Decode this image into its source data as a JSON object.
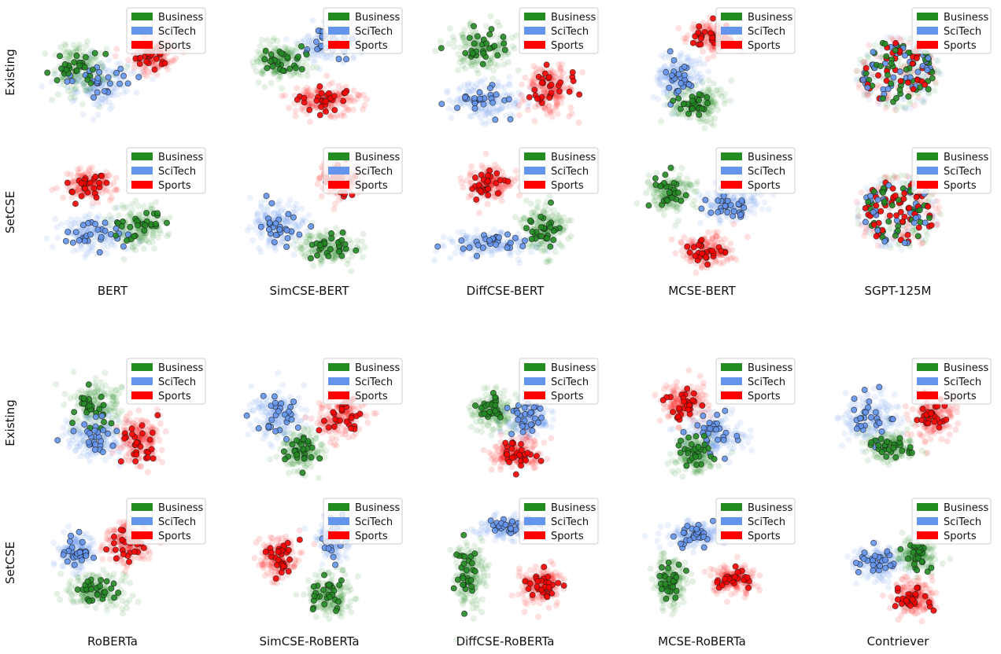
{
  "row_labels": [
    "Existing",
    "SetCSE"
  ],
  "legend_labels": [
    "Business",
    "SciTech",
    "Sports"
  ],
  "colors": {
    "Business": "#228B22",
    "SciTech": "#6495ED",
    "Sports": "#FF0000",
    "dot_edge": "#1b1b1b"
  },
  "chart_data": [
    {
      "type": "scatter",
      "panel_group": "top",
      "column_titles": [
        "BERT",
        "SimCSE-BERT",
        "DiffCSE-BERT",
        "MCSE-BERT",
        "SGPT-125M"
      ],
      "row_labels": [
        "Existing",
        "SetCSE"
      ],
      "legend": [
        "Business",
        "SciTech",
        "Sports"
      ],
      "legend_placement": "top-right",
      "axes_visible": false,
      "grid": false
    },
    {
      "type": "scatter",
      "panel_group": "bottom",
      "column_titles": [
        "RoBERTa",
        "SimCSE-RoBERTa",
        "DiffCSE-RoBERTa",
        "MCSE-RoBERTa",
        "Contriever"
      ],
      "row_labels": [
        "Existing",
        "SetCSE"
      ],
      "legend": [
        "Business",
        "SciTech",
        "Sports"
      ],
      "legend_placement": "top-right",
      "axes_visible": false,
      "grid": false
    }
  ]
}
